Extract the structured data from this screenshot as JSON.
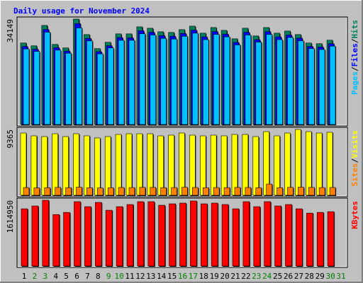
{
  "chart_data": [
    {
      "type": "bar",
      "title": "Daily usage for November 2024",
      "categories": [
        "1",
        "2",
        "3",
        "4",
        "5",
        "6",
        "7",
        "8",
        "9",
        "10",
        "11",
        "12",
        "13",
        "14",
        "15",
        "16",
        "17",
        "18",
        "19",
        "20",
        "21",
        "22",
        "23",
        "24",
        "25",
        "26",
        "27",
        "28",
        "29",
        "30",
        "31"
      ],
      "category_colors": [
        "#000000",
        "#008000",
        "#008000",
        "#000000",
        "#000000",
        "#000000",
        "#000000",
        "#000000",
        "#008000",
        "#008000",
        "#000000",
        "#000000",
        "#000000",
        "#000000",
        "#000000",
        "#008000",
        "#008000",
        "#000000",
        "#000000",
        "#000000",
        "#000000",
        "#000000",
        "#008000",
        "#008000",
        "#000000",
        "#000000",
        "#000000",
        "#000000",
        "#000000",
        "#008000",
        "#008000"
      ],
      "legend_separator": "/",
      "series": [
        {
          "name": "Hits",
          "color": "#00805c",
          "values": [
            26409,
            25498,
            32100,
            25953,
            24815,
            34149,
            29140,
            24587,
            26636,
            29368,
            29368,
            31645,
            31189,
            30051,
            29823,
            30734,
            31872,
            29596,
            31417,
            30506,
            27774,
            31189,
            28685,
            31417,
            29596,
            30279,
            29140,
            26409,
            26181,
            27319,
            null
          ]
        },
        {
          "name": "Files",
          "color": "#0000ff",
          "values": [
            25300,
            24400,
            30800,
            24900,
            23800,
            32700,
            27900,
            23600,
            25500,
            28200,
            28100,
            30400,
            29900,
            28800,
            28600,
            29500,
            30600,
            28400,
            30100,
            29300,
            26600,
            29900,
            27500,
            30100,
            28400,
            29000,
            28000,
            25300,
            25100,
            26200,
            null
          ]
        },
        {
          "name": "Pages",
          "color": "#00c0ff",
          "values": [
            24500,
            23700,
            29900,
            24100,
            23100,
            31300,
            27100,
            22900,
            24800,
            27300,
            27300,
            29400,
            29000,
            27900,
            27700,
            28600,
            29600,
            27500,
            29200,
            28400,
            25800,
            29000,
            26700,
            29200,
            27500,
            28200,
            27100,
            24600,
            24300,
            25400,
            null
          ]
        }
      ],
      "ylim": [
        0,
        34149
      ],
      "yticks": [
        34149
      ]
    },
    {
      "type": "bar",
      "legend_separator": "/",
      "series": [
        {
          "name": "Visits",
          "color": "#ffff00",
          "values": [
            8862,
            8459,
            8358,
            8761,
            8358,
            8761,
            8459,
            8157,
            8358,
            8660,
            8761,
            8761,
            8761,
            8459,
            8560,
            8862,
            8560,
            8459,
            8560,
            8459,
            8660,
            8660,
            8358,
            9063,
            8459,
            8862,
            9365,
            9063,
            8862,
            8962,
            null
          ]
        },
        {
          "name": "Sites",
          "color": "#ff8000",
          "values": [
            1100,
            1050,
            1080,
            1120,
            1090,
            1150,
            1070,
            1040,
            1060,
            1110,
            1100,
            1130,
            1120,
            1090,
            1100,
            1140,
            1110,
            1080,
            1100,
            1090,
            1120,
            1110,
            1070,
            1600,
            1080,
            1130,
            1150,
            1120,
            1100,
            1110,
            null
          ]
        }
      ],
      "ylim": [
        0,
        9365
      ],
      "yticks": [
        9365
      ]
    },
    {
      "type": "bar",
      "series": [
        {
          "name": "KBytes",
          "color": "#ff0000",
          "values": [
            1404320,
            1474536,
            1614950,
            1263888,
            1316550,
            1579860,
            1456982,
            1562306,
            1369212,
            1456982,
            1509644,
            1579860,
            1579860,
            1492090,
            1527198,
            1544752,
            1597396,
            1527198,
            1544752,
            1509644,
            1404320,
            1579860,
            1456982,
            1579860,
            1474536,
            1509644,
            1404320,
            1298996,
            1316550,
            1334104,
            null
          ]
        }
      ],
      "ylim": [
        0,
        1614950
      ],
      "yticks": [
        1614950
      ]
    }
  ]
}
